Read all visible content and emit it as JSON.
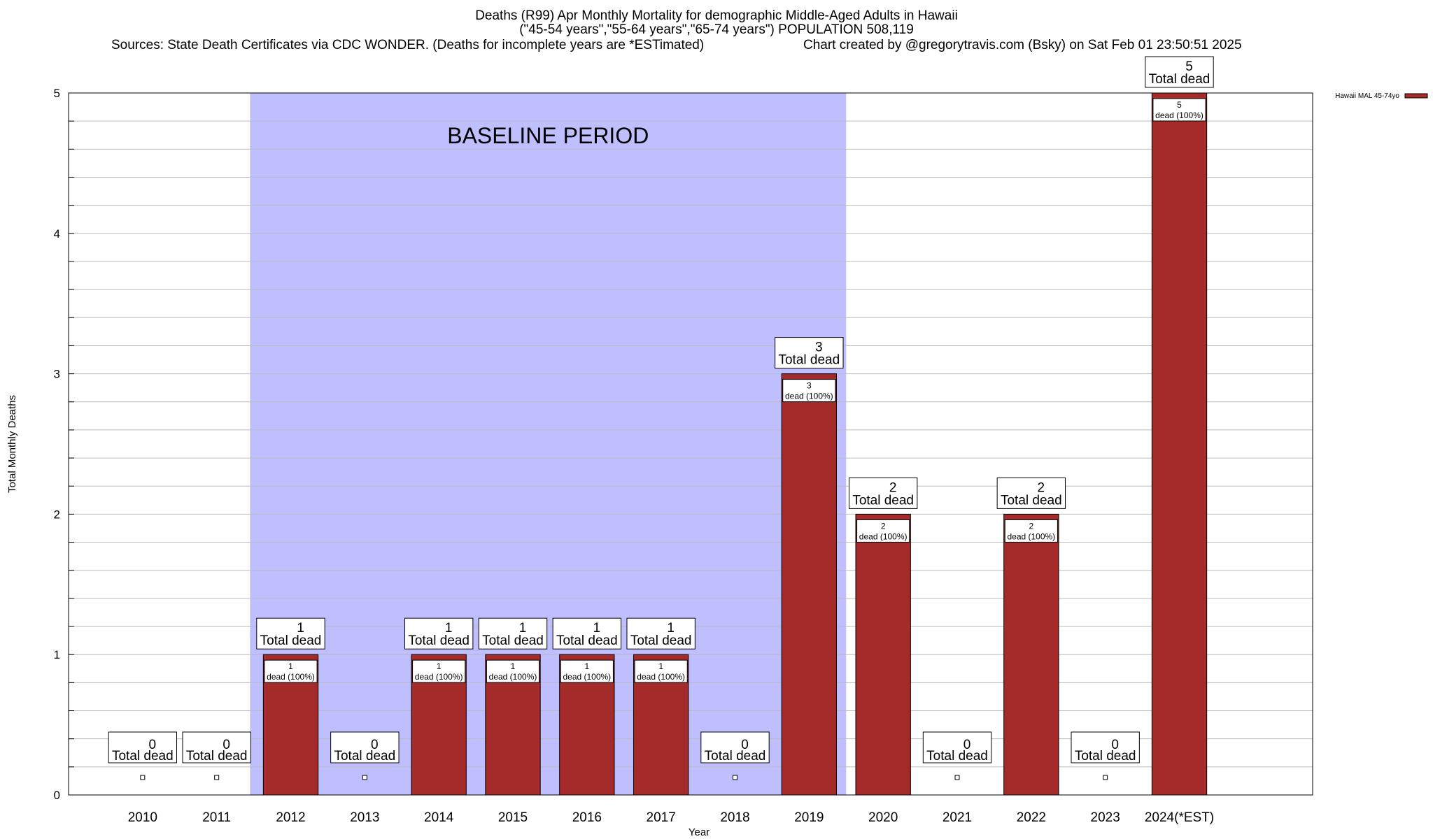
{
  "chart_data": {
    "type": "bar",
    "title_line1": "Deaths (R99) Apr Monthly Mortality for demographic Middle-Aged Adults in Hawaii",
    "title_line2": "(\"45-54 years\",\"55-64 years\",\"65-74 years\") POPULATION 508,119",
    "sources": "Sources: State Death Certificates via CDC WONDER. (Deaths for incomplete years are *ESTimated)",
    "credit": "Chart created by @gregorytravis.com (Bsky) on Sat Feb 01 23:50:51 2025",
    "xlabel": "Year",
    "ylabel": "Total Monthly Deaths",
    "ylim": [
      0,
      5
    ],
    "yticks": [
      "0",
      "1",
      "2",
      "3",
      "4",
      "5"
    ],
    "categories": [
      "2010",
      "2011",
      "2012",
      "2013",
      "2014",
      "2015",
      "2016",
      "2017",
      "2018",
      "2019",
      "2020",
      "2021",
      "2022",
      "2023",
      "2024(*EST)"
    ],
    "series": [
      {
        "name": "Hawaii MAL 45-74yo",
        "values": [
          0,
          0,
          1,
          0,
          1,
          1,
          1,
          1,
          0,
          3,
          2,
          0,
          2,
          0,
          5
        ]
      }
    ],
    "total_label": "Total dead",
    "inner_labels": [
      "",
      "",
      "dead (100%)",
      "",
      "dead (100%)",
      "dead (100%)",
      "dead (100%)",
      "dead (100%)",
      "",
      "dead (100%)",
      "dead (100%)",
      "",
      "dead (100%)",
      "",
      "dead (100%)"
    ],
    "baseline": {
      "label": "BASELINE PERIOD",
      "from": "2012",
      "to": "2019"
    },
    "grid": true,
    "legend_position": "top-right",
    "colors": {
      "bar": "#a52a2a",
      "baseline": "#bfbfff",
      "grid": "#bbbbbb"
    }
  }
}
